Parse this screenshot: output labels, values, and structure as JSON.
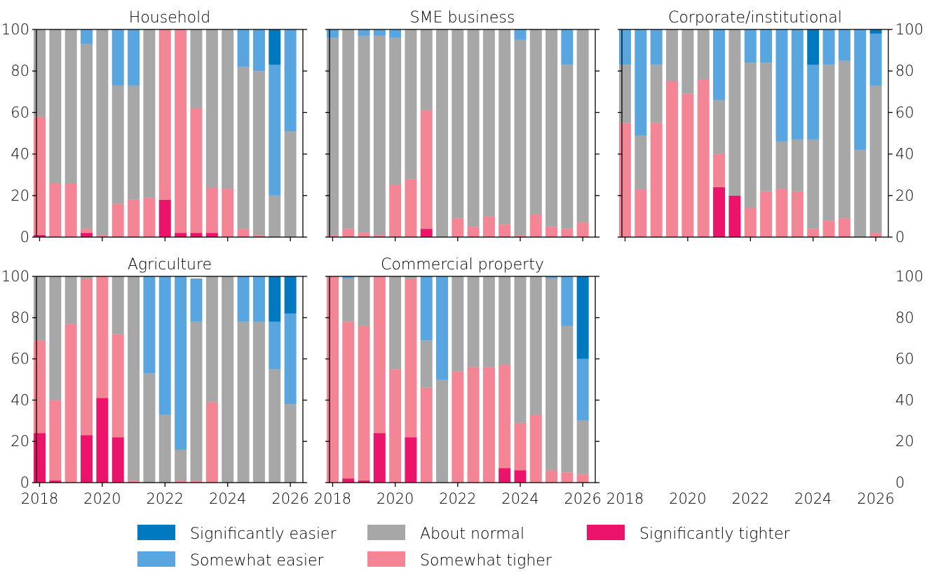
{
  "colors": {
    "significantly_easier": "#0079C1",
    "somewhat_easier": "#58A5DF",
    "about_normal": "#A7A7A7",
    "somewhat_tighter": "#F48595",
    "significantly_tighter": "#EC136A",
    "axis": "#000000"
  },
  "chart_data": {
    "type": "bar",
    "stacked": true,
    "grid": false,
    "ylim": [
      0,
      100
    ],
    "yticks": [
      0,
      20,
      40,
      60,
      80,
      100
    ],
    "xticks": [
      "2018",
      "2020",
      "2022",
      "2024",
      "2026"
    ],
    "legend": {
      "placement": "bottom",
      "entries": [
        "Significantly easier",
        "Somewhat easier",
        "About normal",
        "Somewhat tigher",
        "Significantly tighter"
      ]
    },
    "series_order": [
      "Significantly tighter",
      "Somewhat tigher",
      "About normal",
      "Somewhat easier",
      "Significantly easier"
    ],
    "x": [
      2018.0,
      2018.5,
      2019.0,
      2019.5,
      2020.0,
      2020.5,
      2021.0,
      2021.5,
      2022.0,
      2022.5,
      2023.0,
      2023.5,
      2024.0,
      2024.5,
      2025.0,
      2025.5,
      2026.0
    ],
    "panels": [
      {
        "title": "Household",
        "series": [
          {
            "name": "Significantly tighter",
            "values": [
              1,
              0,
              0,
              2,
              0,
              0,
              0,
              0,
              18,
              2,
              2,
              2,
              0,
              0,
              0,
              0,
              0
            ]
          },
          {
            "name": "Somewhat tigher",
            "values": [
              57,
              26,
              26,
              2,
              1,
              16,
              18,
              19,
              82,
              98,
              60,
              22,
              23,
              4,
              1,
              0,
              0
            ]
          },
          {
            "name": "About normal",
            "values": [
              42,
              74,
              74,
              89,
              99,
              57,
              55,
              81,
              0,
              0,
              38,
              76,
              77,
              78,
              79,
              20,
              51
            ]
          },
          {
            "name": "Somewhat easier",
            "values": [
              0,
              0,
              0,
              7,
              0,
              27,
              27,
              0,
              0,
              0,
              0,
              0,
              0,
              18,
              20,
              63,
              49
            ]
          },
          {
            "name": "Significantly easier",
            "values": [
              0,
              0,
              0,
              0,
              0,
              0,
              0,
              0,
              0,
              0,
              0,
              0,
              0,
              0,
              0,
              17,
              0
            ]
          }
        ]
      },
      {
        "title": "SME business",
        "series": [
          {
            "name": "Significantly tighter",
            "values": [
              0,
              0,
              0,
              0,
              0,
              0,
              4,
              0,
              0,
              0,
              0,
              0,
              0,
              0,
              0,
              0,
              0
            ]
          },
          {
            "name": "Somewhat tigher",
            "values": [
              1,
              4,
              2,
              1,
              25,
              28,
              57,
              0,
              9,
              5,
              10,
              6,
              1,
              11,
              5,
              4,
              7
            ]
          },
          {
            "name": "About normal",
            "values": [
              95,
              96,
              95,
              96,
              71,
              72,
              39,
              100,
              91,
              95,
              90,
              94,
              94,
              89,
              95,
              79,
              93
            ]
          },
          {
            "name": "Somewhat easier",
            "values": [
              4,
              0,
              3,
              3,
              4,
              0,
              0,
              0,
              0,
              0,
              0,
              0,
              5,
              0,
              0,
              17,
              0
            ]
          },
          {
            "name": "Significantly easier",
            "values": [
              0,
              0,
              0,
              0,
              0,
              0,
              0,
              0,
              0,
              0,
              0,
              0,
              0,
              0,
              0,
              0,
              0
            ]
          }
        ]
      },
      {
        "title": "Corporate/institutional",
        "series": [
          {
            "name": "Significantly tighter",
            "values": [
              0,
              0,
              0,
              0,
              0,
              0,
              24,
              20,
              0,
              0,
              0,
              0,
              0,
              0,
              0,
              0,
              0
            ]
          },
          {
            "name": "Somewhat tigher",
            "values": [
              55,
              23,
              55,
              75,
              69,
              76,
              16,
              0,
              14,
              22,
              23,
              22,
              4,
              8,
              9,
              0,
              2
            ]
          },
          {
            "name": "About normal",
            "values": [
              28,
              26,
              28,
              25,
              31,
              24,
              26,
              80,
              70,
              62,
              23,
              25,
              43,
              75,
              76,
              42,
              71
            ]
          },
          {
            "name": "Somewhat easier",
            "values": [
              17,
              51,
              17,
              0,
              0,
              0,
              34,
              0,
              16,
              16,
              54,
              53,
              36,
              17,
              15,
              58,
              25
            ]
          },
          {
            "name": "Significantly easier",
            "values": [
              0,
              0,
              0,
              0,
              0,
              0,
              0,
              0,
              0,
              0,
              0,
              0,
              17,
              0,
              0,
              0,
              2
            ]
          }
        ]
      },
      {
        "title": "Agriculture",
        "series": [
          {
            "name": "Significantly tighter",
            "values": [
              24,
              1,
              0,
              23,
              41,
              22,
              0,
              0,
              0,
              0,
              0,
              0,
              0,
              0,
              0,
              0,
              0
            ]
          },
          {
            "name": "Somewhat tigher",
            "values": [
              45,
              39,
              77,
              76,
              59,
              50,
              1,
              0,
              0,
              1,
              1,
              39,
              0,
              0,
              0,
              0,
              0
            ]
          },
          {
            "name": "About normal",
            "values": [
              31,
              60,
              23,
              1,
              0,
              28,
              99,
              53,
              33,
              15,
              77,
              61,
              100,
              78,
              78,
              55,
              38
            ]
          },
          {
            "name": "Somewhat easier",
            "values": [
              0,
              0,
              0,
              0,
              0,
              0,
              0,
              47,
              67,
              84,
              21,
              0,
              0,
              22,
              22,
              23,
              44
            ]
          },
          {
            "name": "Significantly easier",
            "values": [
              0,
              0,
              0,
              0,
              0,
              0,
              0,
              0,
              0,
              0,
              0,
              0,
              0,
              0,
              0,
              22,
              18
            ]
          }
        ]
      },
      {
        "title": "Commercial property",
        "series": [
          {
            "name": "Significantly tighter",
            "values": [
              0,
              2,
              1,
              24,
              0,
              22,
              0,
              0,
              0,
              0,
              0,
              7,
              6,
              0,
              0,
              0,
              0
            ]
          },
          {
            "name": "Somewhat tigher",
            "values": [
              100,
              76,
              75,
              76,
              55,
              77,
              46,
              0,
              54,
              56,
              56,
              50,
              23,
              33,
              6,
              5,
              4
            ]
          },
          {
            "name": "About normal",
            "values": [
              0,
              21,
              24,
              0,
              45,
              1,
              23,
              50,
              46,
              44,
              44,
              43,
              71,
              67,
              93,
              71,
              26
            ]
          },
          {
            "name": "Somewhat easier",
            "values": [
              0,
              1,
              0,
              0,
              0,
              0,
              31,
              50,
              0,
              0,
              0,
              0,
              0,
              0,
              1,
              24,
              30
            ]
          },
          {
            "name": "Significantly easier",
            "values": [
              0,
              0,
              0,
              0,
              0,
              0,
              0,
              0,
              0,
              0,
              0,
              0,
              0,
              0,
              0,
              0,
              40
            ]
          }
        ]
      }
    ]
  }
}
